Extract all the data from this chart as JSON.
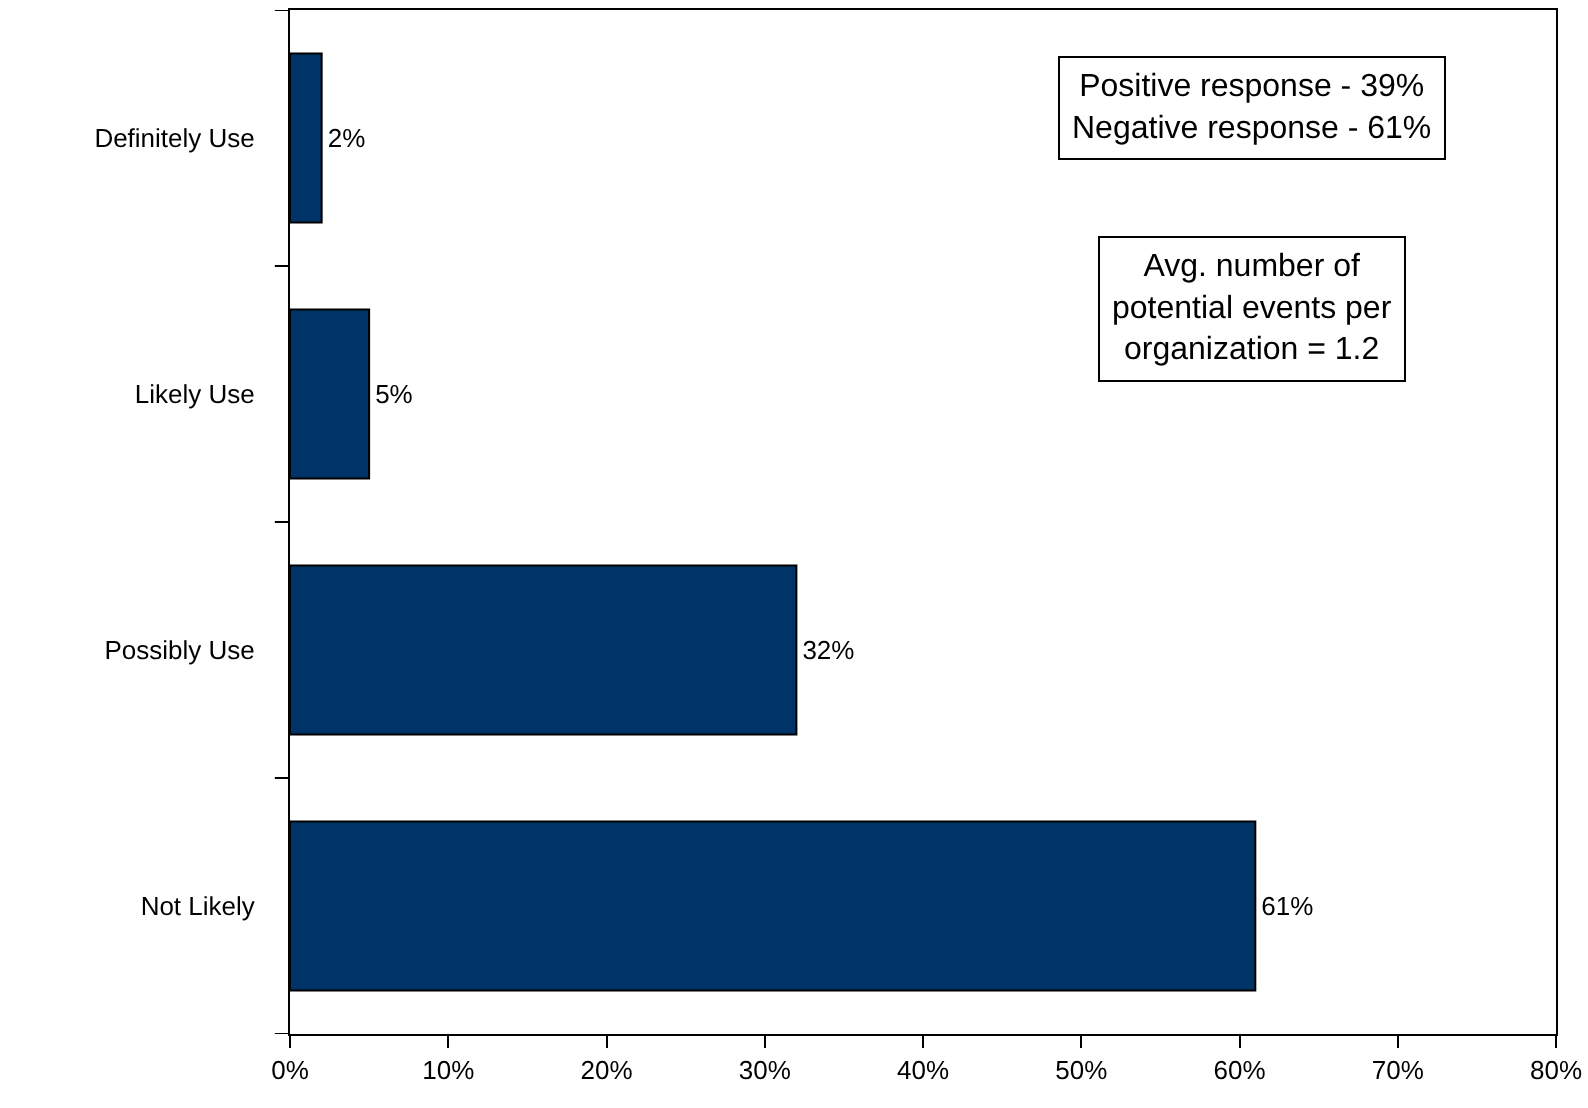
{
  "chart_data": {
    "type": "bar",
    "orientation": "horizontal",
    "categories": [
      "Definitely Use",
      "Likely Use",
      "Possibly Use",
      "Not Likely"
    ],
    "values": [
      2,
      5,
      32,
      61
    ],
    "color": "#003366",
    "value_labels": [
      "2%",
      "5%",
      "32%",
      "61%"
    ],
    "xlim": [
      0,
      80
    ],
    "xticks": [
      {
        "value": 0,
        "label": "0%"
      },
      {
        "value": 10,
        "label": "10%"
      },
      {
        "value": 20,
        "label": "20%"
      },
      {
        "value": 30,
        "label": "30%"
      },
      {
        "value": 40,
        "label": "40%"
      },
      {
        "value": 50,
        "label": "50%"
      },
      {
        "value": 60,
        "label": "60%"
      },
      {
        "value": 70,
        "label": "70%"
      },
      {
        "value": 80,
        "label": "80%"
      }
    ],
    "annotations": [
      "Positive response - 39%\nNegative response - 61%",
      "Avg. number of\npotential events per\norganization = 1.2"
    ],
    "grid": false
  }
}
